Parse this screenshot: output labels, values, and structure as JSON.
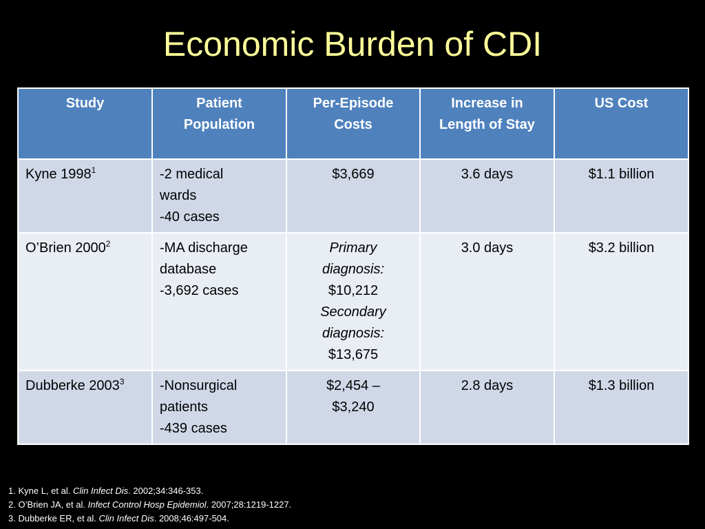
{
  "title": "Economic Burden of CDI",
  "table": {
    "headers": [
      [
        "Study"
      ],
      [
        "Patient",
        "Population"
      ],
      [
        "Per-Episode",
        "Costs"
      ],
      [
        "Increase in",
        "Length of Stay"
      ],
      [
        "US Cost"
      ]
    ],
    "rows": [
      {
        "study": "Kyne 1998",
        "study_sup": "1",
        "population": [
          "-2 medical",
          "wards",
          "-40 cases"
        ],
        "cost_lines": [
          {
            "text": "$3,669",
            "italic": false
          }
        ],
        "los": "3.6 days",
        "us_cost": "$1.1 billion"
      },
      {
        "study": "O’Brien 2000",
        "study_sup": "2",
        "population": [
          "-MA discharge",
          "database",
          "-3,692 cases"
        ],
        "cost_lines": [
          {
            "text": "Primary",
            "italic": true
          },
          {
            "text": "diagnosis:",
            "italic": true
          },
          {
            "text": "$10,212",
            "italic": false
          },
          {
            "text": "Secondary",
            "italic": true
          },
          {
            "text": "diagnosis:",
            "italic": true
          },
          {
            "text": "$13,675",
            "italic": false
          }
        ],
        "los": "3.0 days",
        "us_cost": "$3.2 billion"
      },
      {
        "study": "Dubberke 2003",
        "study_sup": "3",
        "population": [
          "-Nonsurgical",
          "patients",
          "-439 cases"
        ],
        "cost_lines": [
          {
            "text": "$2,454 –",
            "italic": false
          },
          {
            "text": "$3,240",
            "italic": false
          }
        ],
        "los": "2.8 days",
        "us_cost": "$1.3 billion"
      }
    ]
  },
  "references": [
    {
      "pre": "1. Kyne L, et al. ",
      "journal": "Clin Infect Dis",
      "post": ". 2002;34:346-353."
    },
    {
      "pre": "2. O’Brien JA, et al. ",
      "journal": "Infect Control Hosp Epidemiol",
      "post": ". 2007;28:1219-1227."
    },
    {
      "pre": "3. Dubberke ER, et al. ",
      "journal": "Clin Infect Dis",
      "post": ". 2008;46:497-504."
    }
  ]
}
